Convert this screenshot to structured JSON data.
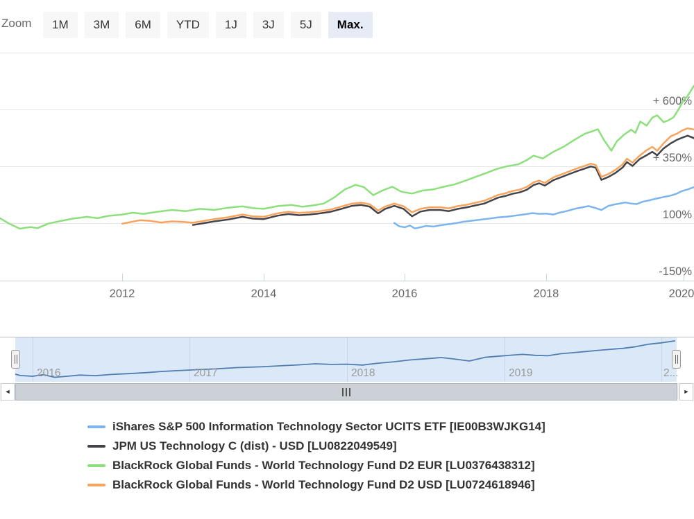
{
  "range_selector": {
    "title": "Zoom",
    "buttons": [
      "1M",
      "3M",
      "6M",
      "YTD",
      "1J",
      "3J",
      "5J",
      "Max."
    ],
    "selected_index": 7
  },
  "chart_data": {
    "type": "line",
    "title": "",
    "x_axis": {
      "min": 2010.27,
      "max": 2020.09,
      "ticks": [
        2012,
        2014,
        2016,
        2018,
        2020
      ]
    },
    "y_axis": {
      "min": -150,
      "max": 850,
      "unit": "%",
      "labels": [
        {
          "text": "+ 600%",
          "value": 600
        },
        {
          "text": "+ 350%",
          "value": 350
        },
        {
          "text": "100%",
          "value": 100
        },
        {
          "text": "-150%",
          "value": -150
        }
      ]
    },
    "series": [
      {
        "name": "iShares S&P 500 Information Technology Sector UCITS ETF [IE00B3WJKG14]",
        "color": "#7cb5ec",
        "points": [
          [
            2015.85,
            103
          ],
          [
            2015.92,
            88
          ],
          [
            2016.0,
            84
          ],
          [
            2016.07,
            92
          ],
          [
            2016.14,
            79
          ],
          [
            2016.22,
            84
          ],
          [
            2016.3,
            90
          ],
          [
            2016.4,
            87
          ],
          [
            2016.5,
            93
          ],
          [
            2016.6,
            97
          ],
          [
            2016.72,
            102
          ],
          [
            2016.82,
            108
          ],
          [
            2016.95,
            113
          ],
          [
            2017.05,
            117
          ],
          [
            2017.17,
            121
          ],
          [
            2017.3,
            127
          ],
          [
            2017.45,
            131
          ],
          [
            2017.6,
            137
          ],
          [
            2017.7,
            141
          ],
          [
            2017.8,
            146
          ],
          [
            2017.9,
            143
          ],
          [
            2018.0,
            144
          ],
          [
            2018.1,
            140
          ],
          [
            2018.2,
            149
          ],
          [
            2018.3,
            156
          ],
          [
            2018.4,
            165
          ],
          [
            2018.5,
            171
          ],
          [
            2018.6,
            177
          ],
          [
            2018.68,
            170
          ],
          [
            2018.78,
            160
          ],
          [
            2018.88,
            178
          ],
          [
            2018.95,
            183
          ],
          [
            2019.05,
            189
          ],
          [
            2019.12,
            193
          ],
          [
            2019.2,
            188
          ],
          [
            2019.28,
            186
          ],
          [
            2019.36,
            196
          ],
          [
            2019.44,
            201
          ],
          [
            2019.52,
            207
          ],
          [
            2019.6,
            213
          ],
          [
            2019.68,
            218
          ],
          [
            2019.76,
            223
          ],
          [
            2019.84,
            231
          ],
          [
            2019.92,
            243
          ],
          [
            2020.0,
            250
          ],
          [
            2020.09,
            260
          ]
        ]
      },
      {
        "name": "JPM US Technology C (dist) - USD [LU0822049549]",
        "color": "#434348",
        "points": [
          [
            2013.0,
            94
          ],
          [
            2013.15,
            102
          ],
          [
            2013.3,
            110
          ],
          [
            2013.5,
            118
          ],
          [
            2013.7,
            130
          ],
          [
            2013.85,
            122
          ],
          [
            2014.0,
            120
          ],
          [
            2014.2,
            135
          ],
          [
            2014.35,
            142
          ],
          [
            2014.5,
            137
          ],
          [
            2014.65,
            140
          ],
          [
            2014.8,
            145
          ],
          [
            2014.95,
            152
          ],
          [
            2015.1,
            165
          ],
          [
            2015.25,
            178
          ],
          [
            2015.38,
            182
          ],
          [
            2015.5,
            175
          ],
          [
            2015.62,
            145
          ],
          [
            2015.72,
            165
          ],
          [
            2015.85,
            178
          ],
          [
            2015.98,
            165
          ],
          [
            2016.1,
            132
          ],
          [
            2016.22,
            153
          ],
          [
            2016.35,
            160
          ],
          [
            2016.5,
            160
          ],
          [
            2016.62,
            155
          ],
          [
            2016.75,
            165
          ],
          [
            2016.88,
            172
          ],
          [
            2017.0,
            180
          ],
          [
            2017.12,
            188
          ],
          [
            2017.22,
            201
          ],
          [
            2017.32,
            214
          ],
          [
            2017.42,
            221
          ],
          [
            2017.52,
            231
          ],
          [
            2017.62,
            237
          ],
          [
            2017.72,
            248
          ],
          [
            2017.82,
            269
          ],
          [
            2017.9,
            277
          ],
          [
            2017.98,
            267
          ],
          [
            2018.1,
            291
          ],
          [
            2018.22,
            305
          ],
          [
            2018.33,
            318
          ],
          [
            2018.45,
            332
          ],
          [
            2018.55,
            342
          ],
          [
            2018.63,
            351
          ],
          [
            2018.7,
            345
          ],
          [
            2018.78,
            292
          ],
          [
            2018.88,
            305
          ],
          [
            2018.98,
            323
          ],
          [
            2019.08,
            346
          ],
          [
            2019.14,
            370
          ],
          [
            2019.22,
            353
          ],
          [
            2019.32,
            383
          ],
          [
            2019.42,
            400
          ],
          [
            2019.5,
            415
          ],
          [
            2019.57,
            400
          ],
          [
            2019.66,
            430
          ],
          [
            2019.76,
            452
          ],
          [
            2019.85,
            468
          ],
          [
            2019.93,
            478
          ],
          [
            2020.0,
            486
          ],
          [
            2020.09,
            475
          ]
        ]
      },
      {
        "name": "BlackRock Global Funds - World Technology Fund D2 EUR [LU0376438312]",
        "color": "#8ce07c",
        "points": [
          [
            2010.27,
            124
          ],
          [
            2010.4,
            100
          ],
          [
            2010.55,
            78
          ],
          [
            2010.7,
            85
          ],
          [
            2010.8,
            80
          ],
          [
            2010.95,
            100
          ],
          [
            2011.1,
            110
          ],
          [
            2011.3,
            122
          ],
          [
            2011.5,
            130
          ],
          [
            2011.65,
            124
          ],
          [
            2011.8,
            134
          ],
          [
            2012.0,
            140
          ],
          [
            2012.15,
            148
          ],
          [
            2012.3,
            143
          ],
          [
            2012.5,
            152
          ],
          [
            2012.7,
            160
          ],
          [
            2012.9,
            155
          ],
          [
            2013.1,
            165
          ],
          [
            2013.3,
            160
          ],
          [
            2013.5,
            170
          ],
          [
            2013.7,
            176
          ],
          [
            2013.85,
            168
          ],
          [
            2014.0,
            165
          ],
          [
            2014.2,
            177
          ],
          [
            2014.4,
            182
          ],
          [
            2014.55,
            174
          ],
          [
            2014.7,
            180
          ],
          [
            2014.85,
            188
          ],
          [
            2015.0,
            215
          ],
          [
            2015.15,
            250
          ],
          [
            2015.3,
            270
          ],
          [
            2015.42,
            260
          ],
          [
            2015.55,
            225
          ],
          [
            2015.68,
            245
          ],
          [
            2015.82,
            262
          ],
          [
            2015.95,
            240
          ],
          [
            2016.1,
            232
          ],
          [
            2016.25,
            245
          ],
          [
            2016.4,
            250
          ],
          [
            2016.55,
            262
          ],
          [
            2016.7,
            272
          ],
          [
            2016.85,
            288
          ],
          [
            2017.0,
            305
          ],
          [
            2017.15,
            322
          ],
          [
            2017.3,
            340
          ],
          [
            2017.45,
            352
          ],
          [
            2017.6,
            360
          ],
          [
            2017.72,
            378
          ],
          [
            2017.82,
            398
          ],
          [
            2017.95,
            386
          ],
          [
            2018.1,
            415
          ],
          [
            2018.25,
            438
          ],
          [
            2018.4,
            468
          ],
          [
            2018.55,
            495
          ],
          [
            2018.65,
            505
          ],
          [
            2018.73,
            514
          ],
          [
            2018.82,
            465
          ],
          [
            2018.92,
            420
          ],
          [
            2019.0,
            462
          ],
          [
            2019.1,
            490
          ],
          [
            2019.2,
            512
          ],
          [
            2019.26,
            498
          ],
          [
            2019.33,
            548
          ],
          [
            2019.42,
            530
          ],
          [
            2019.5,
            565
          ],
          [
            2019.57,
            575
          ],
          [
            2019.66,
            545
          ],
          [
            2019.72,
            552
          ],
          [
            2019.8,
            566
          ],
          [
            2019.88,
            606
          ],
          [
            2019.94,
            640
          ],
          [
            2020.0,
            660
          ],
          [
            2020.05,
            685
          ],
          [
            2020.09,
            705
          ]
        ]
      },
      {
        "name": "BlackRock Global Funds - World Technology Fund D2 USD [LU0724618946]",
        "color": "#f7a35c",
        "points": [
          [
            2012.0,
            100
          ],
          [
            2012.1,
            106
          ],
          [
            2012.25,
            115
          ],
          [
            2012.4,
            112
          ],
          [
            2012.55,
            105
          ],
          [
            2012.7,
            110
          ],
          [
            2012.85,
            108
          ],
          [
            2013.0,
            104
          ],
          [
            2013.15,
            112
          ],
          [
            2013.3,
            120
          ],
          [
            2013.5,
            128
          ],
          [
            2013.7,
            140
          ],
          [
            2013.85,
            132
          ],
          [
            2014.0,
            130
          ],
          [
            2014.2,
            145
          ],
          [
            2014.35,
            152
          ],
          [
            2014.5,
            147
          ],
          [
            2014.65,
            150
          ],
          [
            2014.8,
            155
          ],
          [
            2014.95,
            162
          ],
          [
            2015.1,
            175
          ],
          [
            2015.25,
            188
          ],
          [
            2015.38,
            192
          ],
          [
            2015.5,
            185
          ],
          [
            2015.62,
            158
          ],
          [
            2015.72,
            175
          ],
          [
            2015.85,
            188
          ],
          [
            2015.98,
            176
          ],
          [
            2016.1,
            150
          ],
          [
            2016.22,
            165
          ],
          [
            2016.35,
            172
          ],
          [
            2016.5,
            172
          ],
          [
            2016.62,
            167
          ],
          [
            2016.75,
            177
          ],
          [
            2016.88,
            183
          ],
          [
            2017.0,
            192
          ],
          [
            2017.12,
            200
          ],
          [
            2017.22,
            213
          ],
          [
            2017.32,
            226
          ],
          [
            2017.42,
            233
          ],
          [
            2017.52,
            243
          ],
          [
            2017.62,
            249
          ],
          [
            2017.72,
            260
          ],
          [
            2017.82,
            281
          ],
          [
            2017.9,
            289
          ],
          [
            2017.98,
            279
          ],
          [
            2018.1,
            303
          ],
          [
            2018.22,
            317
          ],
          [
            2018.33,
            330
          ],
          [
            2018.45,
            344
          ],
          [
            2018.55,
            354
          ],
          [
            2018.63,
            363
          ],
          [
            2018.7,
            357
          ],
          [
            2018.78,
            305
          ],
          [
            2018.88,
            318
          ],
          [
            2018.98,
            336
          ],
          [
            2019.08,
            360
          ],
          [
            2019.14,
            385
          ],
          [
            2019.22,
            368
          ],
          [
            2019.32,
            398
          ],
          [
            2019.42,
            422
          ],
          [
            2019.5,
            437
          ],
          [
            2019.57,
            420
          ],
          [
            2019.66,
            452
          ],
          [
            2019.76,
            483
          ],
          [
            2019.85,
            495
          ],
          [
            2019.93,
            510
          ],
          [
            2020.0,
            518
          ],
          [
            2020.09,
            513
          ]
        ]
      }
    ]
  },
  "navigator": {
    "min": 2015.89,
    "max": 2020.1,
    "tick_labels": [
      "2016",
      "2017",
      "2018",
      "2019",
      "2..."
    ],
    "line_color": "#4f7db0"
  },
  "scrollbar": {
    "left_arrow_icon": "◄",
    "right_arrow_icon": "►",
    "grip_icon": "|||"
  },
  "legend": {
    "note": "labels mirror chart_data.series names"
  }
}
